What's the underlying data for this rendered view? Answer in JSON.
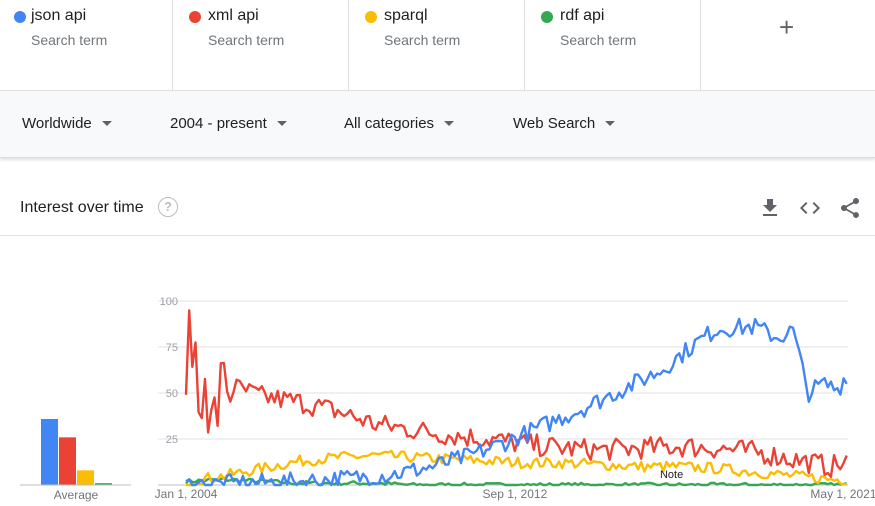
{
  "colors": {
    "blue": "#4285f4",
    "red": "#ea4335",
    "yellow": "#fbbc04",
    "green": "#34a853"
  },
  "terms": [
    {
      "label": "json api",
      "subtitle": "Search term",
      "color": "#4285f4"
    },
    {
      "label": "xml api",
      "subtitle": "Search term",
      "color": "#ea4335"
    },
    {
      "label": "sparql",
      "subtitle": "Search term",
      "color": "#fbbc04"
    },
    {
      "label": "rdf api",
      "subtitle": "Search term",
      "color": "#34a853"
    }
  ],
  "add_label": "+",
  "filters": {
    "region": "Worldwide",
    "time": "2004 - present",
    "category": "All categories",
    "property": "Web Search"
  },
  "card": {
    "title": "Interest over time",
    "help": "?"
  },
  "icons": {
    "download": "download-icon",
    "embed": "code-icon",
    "share": "share-icon",
    "help": "help-icon",
    "add": "plus-icon"
  },
  "chart_data": {
    "type": "line",
    "x_labels": [
      "Jan 1, 2004",
      "Sep 1, 2012",
      "May 1, 2021"
    ],
    "x_range": [
      "2004-01",
      "2021-06"
    ],
    "ylim": [
      0,
      100
    ],
    "yticks": [
      25,
      50,
      75,
      100
    ],
    "note_label": "Note",
    "averages_label": "Average",
    "averages": [
      {
        "name": "json api",
        "value": 36
      },
      {
        "name": "xml api",
        "value": 26
      },
      {
        "name": "sparql",
        "value": 8
      },
      {
        "name": "rdf api",
        "value": 1
      }
    ],
    "series": [
      {
        "name": "json api",
        "color": "#4285f4",
        "anchors": [
          [
            2004.0,
            0
          ],
          [
            2005.5,
            1
          ],
          [
            2007.0,
            2
          ],
          [
            2008.5,
            4
          ],
          [
            2009.5,
            6
          ],
          [
            2010.5,
            10
          ],
          [
            2011.5,
            16
          ],
          [
            2012.5,
            24
          ],
          [
            2013.5,
            33
          ],
          [
            2014.5,
            42
          ],
          [
            2015.5,
            52
          ],
          [
            2016.5,
            62
          ],
          [
            2017.5,
            78
          ],
          [
            2018.0,
            85
          ],
          [
            2019.0,
            86
          ],
          [
            2019.6,
            80
          ],
          [
            2020.0,
            84
          ],
          [
            2020.4,
            50
          ],
          [
            2020.8,
            55
          ],
          [
            2021.2,
            52
          ],
          [
            2021.4,
            60
          ]
        ]
      },
      {
        "name": "xml api",
        "color": "#ea4335",
        "anchors": [
          [
            2004.0,
            57
          ],
          [
            2004.1,
            100
          ],
          [
            2004.4,
            40
          ],
          [
            2005.0,
            55
          ],
          [
            2006.0,
            48
          ],
          [
            2007.0,
            45
          ],
          [
            2008.0,
            40
          ],
          [
            2009.0,
            33
          ],
          [
            2010.0,
            30
          ],
          [
            2011.0,
            27
          ],
          [
            2012.0,
            25
          ],
          [
            2013.0,
            22
          ],
          [
            2014.0,
            20
          ],
          [
            2015.0,
            19
          ],
          [
            2016.0,
            20
          ],
          [
            2017.0,
            21
          ],
          [
            2018.0,
            20
          ],
          [
            2019.0,
            18
          ],
          [
            2020.0,
            14
          ],
          [
            2021.0,
            10
          ],
          [
            2021.4,
            12
          ]
        ]
      },
      {
        "name": "sparql",
        "color": "#fbbc04",
        "anchors": [
          [
            2004.0,
            2
          ],
          [
            2005.0,
            5
          ],
          [
            2006.0,
            9
          ],
          [
            2007.0,
            13
          ],
          [
            2008.0,
            15
          ],
          [
            2009.0,
            16
          ],
          [
            2010.0,
            15
          ],
          [
            2011.0,
            14
          ],
          [
            2012.0,
            13
          ],
          [
            2013.0,
            12
          ],
          [
            2014.0,
            12
          ],
          [
            2015.0,
            11
          ],
          [
            2016.0,
            10
          ],
          [
            2017.0,
            10
          ],
          [
            2018.0,
            9
          ],
          [
            2019.0,
            7
          ],
          [
            2020.0,
            5
          ],
          [
            2021.0,
            3
          ],
          [
            2021.4,
            3
          ]
        ]
      },
      {
        "name": "rdf api",
        "color": "#34a853",
        "anchors": [
          [
            2004.0,
            2
          ],
          [
            2005.0,
            3
          ],
          [
            2006.0,
            2
          ],
          [
            2007.0,
            1
          ],
          [
            2008.0,
            1
          ],
          [
            2009.0,
            1
          ],
          [
            2010.0,
            0
          ],
          [
            2021.4,
            0
          ]
        ]
      }
    ]
  }
}
